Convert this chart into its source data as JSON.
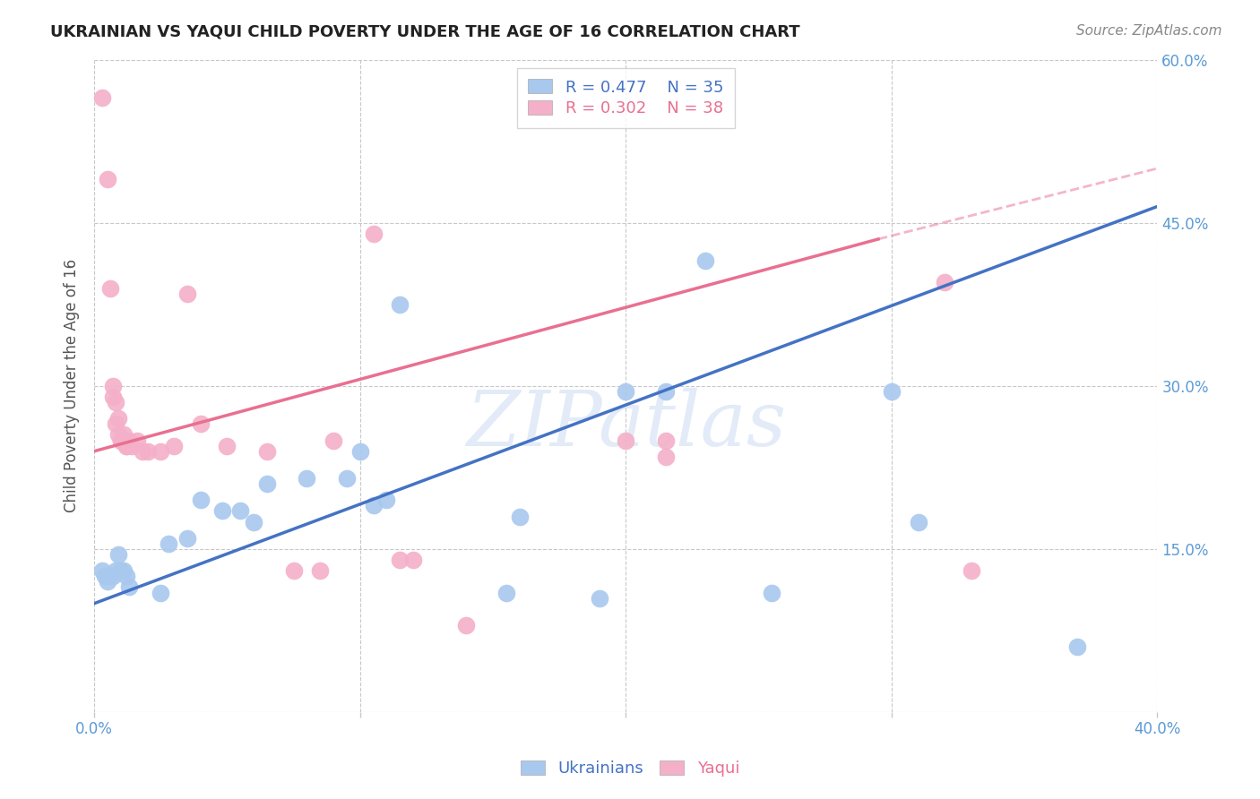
{
  "title": "UKRAINIAN VS YAQUI CHILD POVERTY UNDER THE AGE OF 16 CORRELATION CHART",
  "source": "Source: ZipAtlas.com",
  "ylabel": "Child Poverty Under the Age of 16",
  "xlim": [
    0.0,
    0.4
  ],
  "ylim": [
    0.0,
    0.6
  ],
  "xticks": [
    0.0,
    0.1,
    0.2,
    0.3,
    0.4
  ],
  "xticklabels": [
    "0.0%",
    "",
    "",
    "",
    "40.0%"
  ],
  "yticks": [
    0.0,
    0.15,
    0.3,
    0.45,
    0.6
  ],
  "ytick_right_labels": [
    "",
    "15.0%",
    "30.0%",
    "45.0%",
    "60.0%"
  ],
  "ukrainian_color": "#a8c8ee",
  "yaqui_color": "#f4b0c8",
  "ukrainian_line_color": "#4472c4",
  "yaqui_line_color": "#e87090",
  "axis_label_color": "#5b9bd5",
  "grid_color": "#c8c8c8",
  "watermark": "ZIPatlas",
  "ukrainian_R": 0.477,
  "ukrainian_N": 35,
  "yaqui_R": 0.302,
  "yaqui_N": 38,
  "ukrainian_points": [
    [
      0.003,
      0.13
    ],
    [
      0.004,
      0.125
    ],
    [
      0.005,
      0.12
    ],
    [
      0.006,
      0.125
    ],
    [
      0.007,
      0.125
    ],
    [
      0.008,
      0.13
    ],
    [
      0.009,
      0.145
    ],
    [
      0.01,
      0.13
    ],
    [
      0.011,
      0.13
    ],
    [
      0.012,
      0.125
    ],
    [
      0.013,
      0.115
    ],
    [
      0.025,
      0.11
    ],
    [
      0.028,
      0.155
    ],
    [
      0.035,
      0.16
    ],
    [
      0.04,
      0.195
    ],
    [
      0.048,
      0.185
    ],
    [
      0.055,
      0.185
    ],
    [
      0.06,
      0.175
    ],
    [
      0.065,
      0.21
    ],
    [
      0.08,
      0.215
    ],
    [
      0.095,
      0.215
    ],
    [
      0.1,
      0.24
    ],
    [
      0.105,
      0.19
    ],
    [
      0.11,
      0.195
    ],
    [
      0.115,
      0.375
    ],
    [
      0.155,
      0.11
    ],
    [
      0.16,
      0.18
    ],
    [
      0.19,
      0.105
    ],
    [
      0.2,
      0.295
    ],
    [
      0.215,
      0.295
    ],
    [
      0.23,
      0.415
    ],
    [
      0.255,
      0.11
    ],
    [
      0.3,
      0.295
    ],
    [
      0.31,
      0.175
    ],
    [
      0.37,
      0.06
    ]
  ],
  "yaqui_points": [
    [
      0.003,
      0.565
    ],
    [
      0.005,
      0.49
    ],
    [
      0.006,
      0.39
    ],
    [
      0.007,
      0.29
    ],
    [
      0.007,
      0.3
    ],
    [
      0.008,
      0.285
    ],
    [
      0.008,
      0.265
    ],
    [
      0.009,
      0.27
    ],
    [
      0.009,
      0.255
    ],
    [
      0.01,
      0.25
    ],
    [
      0.01,
      0.25
    ],
    [
      0.011,
      0.255
    ],
    [
      0.011,
      0.25
    ],
    [
      0.012,
      0.245
    ],
    [
      0.012,
      0.245
    ],
    [
      0.013,
      0.25
    ],
    [
      0.014,
      0.245
    ],
    [
      0.016,
      0.25
    ],
    [
      0.018,
      0.24
    ],
    [
      0.02,
      0.24
    ],
    [
      0.025,
      0.24
    ],
    [
      0.03,
      0.245
    ],
    [
      0.035,
      0.385
    ],
    [
      0.04,
      0.265
    ],
    [
      0.05,
      0.245
    ],
    [
      0.065,
      0.24
    ],
    [
      0.075,
      0.13
    ],
    [
      0.085,
      0.13
    ],
    [
      0.09,
      0.25
    ],
    [
      0.105,
      0.44
    ],
    [
      0.115,
      0.14
    ],
    [
      0.12,
      0.14
    ],
    [
      0.14,
      0.08
    ],
    [
      0.2,
      0.25
    ],
    [
      0.215,
      0.25
    ],
    [
      0.215,
      0.235
    ],
    [
      0.32,
      0.395
    ],
    [
      0.33,
      0.13
    ]
  ],
  "ukr_line": [
    [
      0.0,
      0.1
    ],
    [
      0.4,
      0.465
    ]
  ],
  "yaq_line_solid": [
    [
      0.0,
      0.24
    ],
    [
      0.295,
      0.435
    ]
  ],
  "yaq_line_dash": [
    [
      0.295,
      0.435
    ],
    [
      0.4,
      0.5
    ]
  ],
  "bg_color": "#ffffff"
}
